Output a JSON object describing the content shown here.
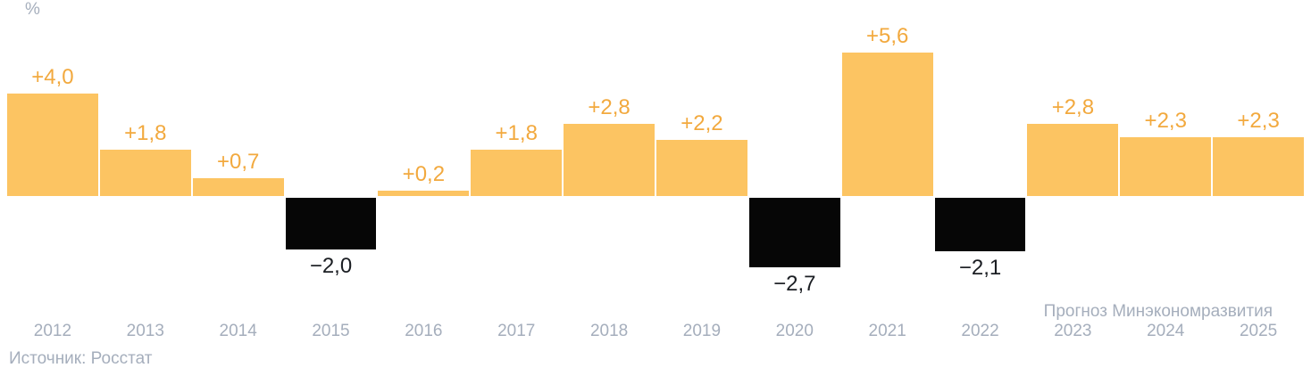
{
  "unit_label": "%",
  "forecast_label": "Прогноз Минэкономразвития",
  "source": "Источник: Росстат",
  "colors": {
    "positive_bar": "#FCC462",
    "negative_bar": "#060606",
    "positive_label": "#F2A93E",
    "negative_label": "#1B1E23",
    "axis_text": "#A5AEBC"
  },
  "chart_data": {
    "type": "bar",
    "title": "",
    "ylabel": "%",
    "xlabel": "",
    "grid": false,
    "legend": false,
    "ylim": [
      -3.5,
      6.5
    ],
    "categories": [
      "2012",
      "2013",
      "2014",
      "2015",
      "2016",
      "2017",
      "2018",
      "2019",
      "2020",
      "2021",
      "2022",
      "2023",
      "2024",
      "2025"
    ],
    "values": [
      4.0,
      1.8,
      0.7,
      -2.0,
      0.2,
      1.8,
      2.8,
      2.2,
      -2.7,
      5.6,
      -2.1,
      2.8,
      2.3,
      2.3
    ],
    "value_labels": [
      "+4,0",
      "+1,8",
      "+0,7",
      "−2,0",
      "+0,2",
      "+1,8",
      "+2,8",
      "+2,2",
      "−2,7",
      "+5,6",
      "−2,1",
      "+2,8",
      "+2,3",
      "+2,3"
    ],
    "forecast_years": [
      "2023",
      "2024",
      "2025"
    ],
    "forecast_annotation": "Прогноз Минэкономразвития",
    "source": "Источник: Росстат"
  }
}
